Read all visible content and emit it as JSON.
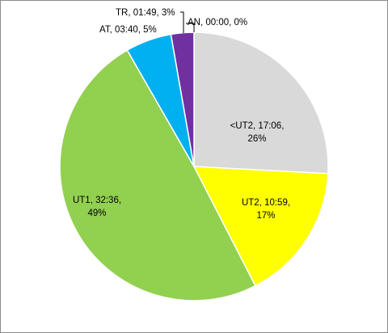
{
  "chart_data": {
    "type": "pie",
    "title": "",
    "legend": "none",
    "slices": [
      {
        "category": "<UT2",
        "time": "17:06",
        "percent": "26%",
        "value": 17.1,
        "color": "#d9d9d9"
      },
      {
        "category": "UT2",
        "time": "10:59",
        "percent": "17%",
        "value": 10.98,
        "color": "#ffff00"
      },
      {
        "category": "UT1",
        "time": "32:36",
        "percent": "49%",
        "value": 32.6,
        "color": "#92d050"
      },
      {
        "category": "AT",
        "time": "03:40",
        "percent": "5%",
        "value": 3.67,
        "color": "#00b0f0"
      },
      {
        "category": "TR",
        "time": "01:49",
        "percent": "3%",
        "value": 1.82,
        "color": "#7030a0"
      },
      {
        "category": "AN",
        "time": "00:00",
        "percent": "0%",
        "value": 0,
        "color": "#000000"
      }
    ],
    "data_labels": [
      {
        "line1": "<UT2,  17:06,",
        "line2": "26%"
      },
      {
        "line1": "UT2,  10:59,",
        "line2": "17%"
      },
      {
        "line1": "UT1,  32:36,",
        "line2": "49%"
      },
      {
        "line1": "AT,  03:40, 5%",
        "line2": ""
      },
      {
        "line1": "TR,  01:49, 3%",
        "line2": ""
      },
      {
        "line1": "AN,  00:00, 0%",
        "line2": ""
      }
    ]
  }
}
